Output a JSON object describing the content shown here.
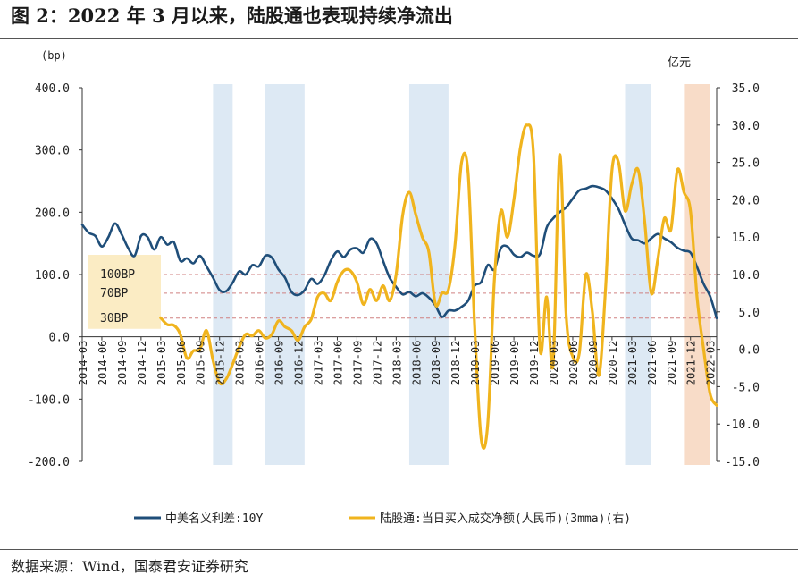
{
  "header": {
    "title": "图 2：2022 年 3 月以来，陆股通也表现持续净流出"
  },
  "footer": {
    "source": "数据来源：Wind，国泰君安证券研究"
  },
  "chart_data": {
    "type": "line",
    "left_axis_unit": "(bp)",
    "right_axis_unit": "亿元",
    "ylim_left": [
      -200,
      400
    ],
    "ylim_right": [
      -15,
      35
    ],
    "left_ticks": [
      {
        "v": 400,
        "label": "400.0"
      },
      {
        "v": 300,
        "label": "300.0"
      },
      {
        "v": 200,
        "label": "200.0"
      },
      {
        "v": 100,
        "label": "100.0"
      },
      {
        "v": 0,
        "label": "0.0"
      },
      {
        "v": -100,
        "label": "-100.0"
      },
      {
        "v": -200,
        "label": "-200.0"
      }
    ],
    "right_ticks": [
      {
        "v": 35,
        "label": "35.0"
      },
      {
        "v": 30,
        "label": "30.0"
      },
      {
        "v": 25,
        "label": "25.0"
      },
      {
        "v": 20,
        "label": "20.0"
      },
      {
        "v": 15,
        "label": "15.0"
      },
      {
        "v": 10,
        "label": "10.0"
      },
      {
        "v": 5,
        "label": "5.0"
      },
      {
        "v": 0,
        "label": "0.0"
      },
      {
        "v": -5,
        "label": "-5.0"
      },
      {
        "v": -10,
        "label": "-10.0"
      },
      {
        "v": -15,
        "label": "-15.0"
      }
    ],
    "x_start": "2014-03",
    "x_end": "2022-04",
    "x_ticks": [
      "2014-03",
      "2014-06",
      "2014-09",
      "2014-12",
      "2015-03",
      "2015-06",
      "2015-09",
      "2015-12",
      "2016-03",
      "2016-06",
      "2016-09",
      "2016-12",
      "2017-03",
      "2017-06",
      "2017-09",
      "2017-12",
      "2018-03",
      "2018-06",
      "2018-09",
      "2018-12",
      "2019-03",
      "2019-06",
      "2019-09",
      "2019-12",
      "2020-03",
      "2020-06",
      "2020-09",
      "2020-12",
      "2021-03",
      "2021-06",
      "2021-09",
      "2021-12",
      "2022-03"
    ],
    "reference_lines": [
      {
        "value": 100,
        "label": "100BP"
      },
      {
        "value": 70,
        "label": "70BP"
      },
      {
        "value": 30,
        "label": "30BP"
      }
    ],
    "shaded_periods": [
      {
        "start": "2015-11",
        "end": "2016-02",
        "color": "#dde9f4"
      },
      {
        "start": "2016-07",
        "end": "2017-01",
        "color": "#dde9f4"
      },
      {
        "start": "2018-05",
        "end": "2018-11",
        "color": "#dde9f4"
      },
      {
        "start": "2021-02",
        "end": "2021-06",
        "color": "#dde9f4"
      },
      {
        "start": "2021-11",
        "end": "2022-03",
        "color": "#f8dcc8"
      }
    ],
    "series": [
      {
        "name": "中美名义利差:10Y",
        "axis": "left",
        "color": "#1f4e79",
        "points": [
          [
            "2014-03",
            180
          ],
          [
            "2014-04",
            167
          ],
          [
            "2014-05",
            162
          ],
          [
            "2014-06",
            145
          ],
          [
            "2014-07",
            160
          ],
          [
            "2014-08",
            182
          ],
          [
            "2014-09",
            165
          ],
          [
            "2014-10",
            143
          ],
          [
            "2014-11",
            130
          ],
          [
            "2014-12",
            162
          ],
          [
            "2015-01",
            160
          ],
          [
            "2015-02",
            140
          ],
          [
            "2015-03",
            160
          ],
          [
            "2015-04",
            148
          ],
          [
            "2015-05",
            152
          ],
          [
            "2015-06",
            122
          ],
          [
            "2015-07",
            126
          ],
          [
            "2015-08",
            118
          ],
          [
            "2015-09",
            130
          ],
          [
            "2015-10",
            113
          ],
          [
            "2015-11",
            95
          ],
          [
            "2015-12",
            75
          ],
          [
            "2016-01",
            73
          ],
          [
            "2016-02",
            87
          ],
          [
            "2016-03",
            105
          ],
          [
            "2016-04",
            100
          ],
          [
            "2016-05",
            115
          ],
          [
            "2016-06",
            113
          ],
          [
            "2016-07",
            130
          ],
          [
            "2016-08",
            127
          ],
          [
            "2016-09",
            108
          ],
          [
            "2016-10",
            95
          ],
          [
            "2016-11",
            72
          ],
          [
            "2016-12",
            67
          ],
          [
            "2017-01",
            75
          ],
          [
            "2017-02",
            93
          ],
          [
            "2017-03",
            85
          ],
          [
            "2017-04",
            98
          ],
          [
            "2017-05",
            122
          ],
          [
            "2017-06",
            137
          ],
          [
            "2017-07",
            128
          ],
          [
            "2017-08",
            140
          ],
          [
            "2017-09",
            142
          ],
          [
            "2017-10",
            135
          ],
          [
            "2017-11",
            157
          ],
          [
            "2017-12",
            150
          ],
          [
            "2018-01",
            122
          ],
          [
            "2018-02",
            95
          ],
          [
            "2018-03",
            80
          ],
          [
            "2018-04",
            68
          ],
          [
            "2018-05",
            72
          ],
          [
            "2018-06",
            65
          ],
          [
            "2018-07",
            70
          ],
          [
            "2018-08",
            63
          ],
          [
            "2018-09",
            50
          ],
          [
            "2018-10",
            32
          ],
          [
            "2018-11",
            42
          ],
          [
            "2018-12",
            42
          ],
          [
            "2019-01",
            48
          ],
          [
            "2019-02",
            58
          ],
          [
            "2019-03",
            82
          ],
          [
            "2019-04",
            88
          ],
          [
            "2019-05",
            115
          ],
          [
            "2019-06",
            108
          ],
          [
            "2019-07",
            142
          ],
          [
            "2019-08",
            145
          ],
          [
            "2019-09",
            132
          ],
          [
            "2019-10",
            128
          ],
          [
            "2019-11",
            135
          ],
          [
            "2019-12",
            130
          ],
          [
            "2020-01",
            133
          ],
          [
            "2020-02",
            175
          ],
          [
            "2020-03",
            190
          ],
          [
            "2020-04",
            200
          ],
          [
            "2020-05",
            208
          ],
          [
            "2020-06",
            222
          ],
          [
            "2020-07",
            235
          ],
          [
            "2020-08",
            238
          ],
          [
            "2020-09",
            242
          ],
          [
            "2020-10",
            240
          ],
          [
            "2020-11",
            235
          ],
          [
            "2020-12",
            222
          ],
          [
            "2021-01",
            205
          ],
          [
            "2021-02",
            180
          ],
          [
            "2021-03",
            158
          ],
          [
            "2021-04",
            155
          ],
          [
            "2021-05",
            150
          ],
          [
            "2021-06",
            158
          ],
          [
            "2021-07",
            165
          ],
          [
            "2021-08",
            158
          ],
          [
            "2021-09",
            152
          ],
          [
            "2021-10",
            143
          ],
          [
            "2021-11",
            138
          ],
          [
            "2021-12",
            135
          ],
          [
            "2022-01",
            112
          ],
          [
            "2022-02",
            85
          ],
          [
            "2022-03",
            65
          ],
          [
            "2022-04",
            30
          ]
        ]
      },
      {
        "name": "陆股通:当日买入成交净额(人民币)(3mma)(右)",
        "axis": "right",
        "color": "#f0b41e",
        "points": [
          [
            "2015-03",
            4.2
          ],
          [
            "2015-04",
            3.3
          ],
          [
            "2015-05",
            3.2
          ],
          [
            "2015-06",
            2.0
          ],
          [
            "2015-07",
            -1.2
          ],
          [
            "2015-08",
            -0.2
          ],
          [
            "2015-09",
            0.0
          ],
          [
            "2015-10",
            2.5
          ],
          [
            "2015-11",
            -1.5
          ],
          [
            "2015-12",
            -4.5
          ],
          [
            "2016-01",
            -4.0
          ],
          [
            "2016-02",
            -2.0
          ],
          [
            "2016-03",
            0.3
          ],
          [
            "2016-04",
            2.0
          ],
          [
            "2016-05",
            1.8
          ],
          [
            "2016-06",
            2.5
          ],
          [
            "2016-07",
            1.5
          ],
          [
            "2016-08",
            2.0
          ],
          [
            "2016-09",
            3.8
          ],
          [
            "2016-10",
            3.0
          ],
          [
            "2016-11",
            2.5
          ],
          [
            "2016-12",
            1.2
          ],
          [
            "2017-01",
            3.0
          ],
          [
            "2017-02",
            4.0
          ],
          [
            "2017-03",
            7.0
          ],
          [
            "2017-04",
            7.5
          ],
          [
            "2017-05",
            6.5
          ],
          [
            "2017-06",
            9.0
          ],
          [
            "2017-07",
            10.5
          ],
          [
            "2017-08",
            10.5
          ],
          [
            "2017-09",
            9.0
          ],
          [
            "2017-10",
            6.0
          ],
          [
            "2017-11",
            8.0
          ],
          [
            "2017-12",
            6.5
          ],
          [
            "2018-01",
            8.5
          ],
          [
            "2018-02",
            6.5
          ],
          [
            "2018-03",
            10.0
          ],
          [
            "2018-04",
            18.0
          ],
          [
            "2018-05",
            21.0
          ],
          [
            "2018-06",
            18.0
          ],
          [
            "2018-07",
            15.0
          ],
          [
            "2018-08",
            13.0
          ],
          [
            "2018-09",
            6.0
          ],
          [
            "2018-10",
            7.5
          ],
          [
            "2018-11",
            8.0
          ],
          [
            "2018-12",
            14.0
          ],
          [
            "2019-01",
            25.0
          ],
          [
            "2019-02",
            23.5
          ],
          [
            "2019-03",
            3.0
          ],
          [
            "2019-04",
            -12.0
          ],
          [
            "2019-05",
            -10.0
          ],
          [
            "2019-06",
            9.0
          ],
          [
            "2019-07",
            18.5
          ],
          [
            "2019-08",
            15.0
          ],
          [
            "2019-09",
            20.0
          ],
          [
            "2019-10",
            27.0
          ],
          [
            "2019-11",
            30.0
          ],
          [
            "2019-12",
            26.0
          ],
          [
            "2020-01",
            0.0
          ],
          [
            "2020-02",
            7.0
          ],
          [
            "2020-03",
            -2.0
          ],
          [
            "2020-04",
            26.0
          ],
          [
            "2020-05",
            4.5
          ],
          [
            "2020-06",
            -1.0
          ],
          [
            "2020-07",
            -0.5
          ],
          [
            "2020-08",
            10.0
          ],
          [
            "2020-09",
            5.0
          ],
          [
            "2020-10",
            -3.5
          ],
          [
            "2020-11",
            8.0
          ],
          [
            "2020-12",
            24.0
          ],
          [
            "2021-01",
            25.0
          ],
          [
            "2021-02",
            18.5
          ],
          [
            "2021-03",
            22.0
          ],
          [
            "2021-04",
            24.0
          ],
          [
            "2021-05",
            17.0
          ],
          [
            "2021-06",
            7.5
          ],
          [
            "2021-07",
            12.0
          ],
          [
            "2021-08",
            17.5
          ],
          [
            "2021-09",
            16.0
          ],
          [
            "2021-10",
            24.0
          ],
          [
            "2021-11",
            21.0
          ],
          [
            "2021-12",
            18.5
          ],
          [
            "2022-01",
            7.0
          ],
          [
            "2022-02",
            0.0
          ],
          [
            "2022-03",
            -6.0
          ],
          [
            "2022-04",
            -7.5
          ]
        ]
      }
    ]
  }
}
